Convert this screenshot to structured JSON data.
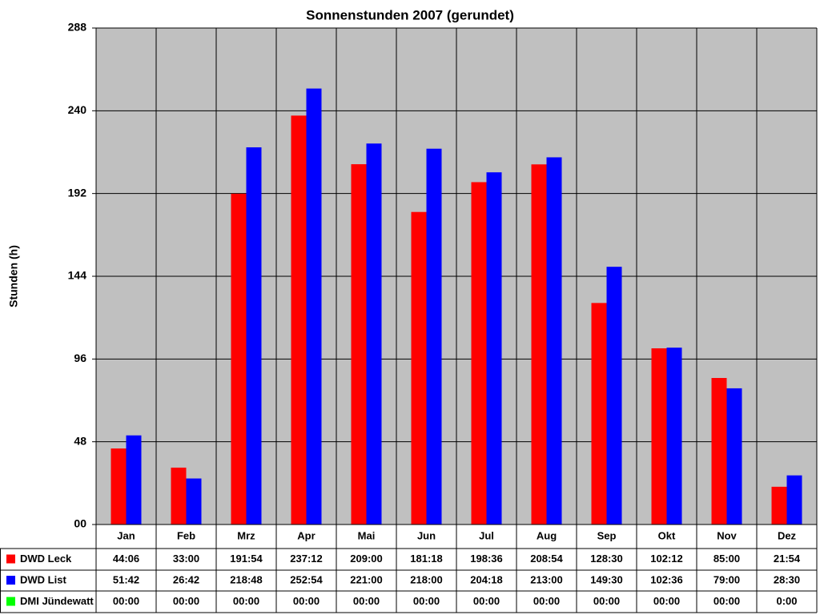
{
  "chart_data": {
    "type": "bar",
    "title": "Sonnenstunden 2007 (gerundet)",
    "y_label": "Stunden (h)",
    "categories": [
      "Jan",
      "Feb",
      "Mrz",
      "Apr",
      "Mai",
      "Jun",
      "Jul",
      "Aug",
      "Sep",
      "Okt",
      "Nov",
      "Dez"
    ],
    "series": [
      {
        "name": "DWD Leck",
        "color": "#ff0000",
        "values": [
          44.1,
          33,
          191.9,
          237.2,
          209,
          181.3,
          198.6,
          208.9,
          128.5,
          102.2,
          85,
          21.9
        ],
        "value_labels": [
          "44:06",
          "33:00",
          "191:54",
          "237:12",
          "209:00",
          "181:18",
          "198:36",
          "208:54",
          "128:30",
          "102:12",
          "85:00",
          "21:54"
        ]
      },
      {
        "name": "DWD List",
        "color": "#0000ff",
        "values": [
          51.7,
          26.7,
          218.8,
          252.9,
          221,
          218,
          204.3,
          213,
          149.5,
          102.6,
          79,
          28.5
        ],
        "value_labels": [
          "51:42",
          "26:42",
          "218:48",
          "252:54",
          "221:00",
          "218:00",
          "204:18",
          "213:00",
          "149:30",
          "102:36",
          "79:00",
          "28:30"
        ]
      },
      {
        "name": "DMI Jündewatt",
        "color": "#00ff00",
        "values": [
          0,
          0,
          0,
          0,
          0,
          0,
          0,
          0,
          0,
          0,
          0,
          0
        ],
        "value_labels": [
          "00:00",
          "00:00",
          "00:00",
          "00:00",
          "00:00",
          "00:00",
          "00:00",
          "00:00",
          "00:00",
          "00:00",
          "00:00",
          "0:00"
        ]
      }
    ],
    "ylim": [
      0,
      288
    ],
    "yticks": [
      {
        "value": 0,
        "label": "00"
      },
      48,
      96,
      144,
      192,
      240,
      288
    ],
    "grid": true
  }
}
